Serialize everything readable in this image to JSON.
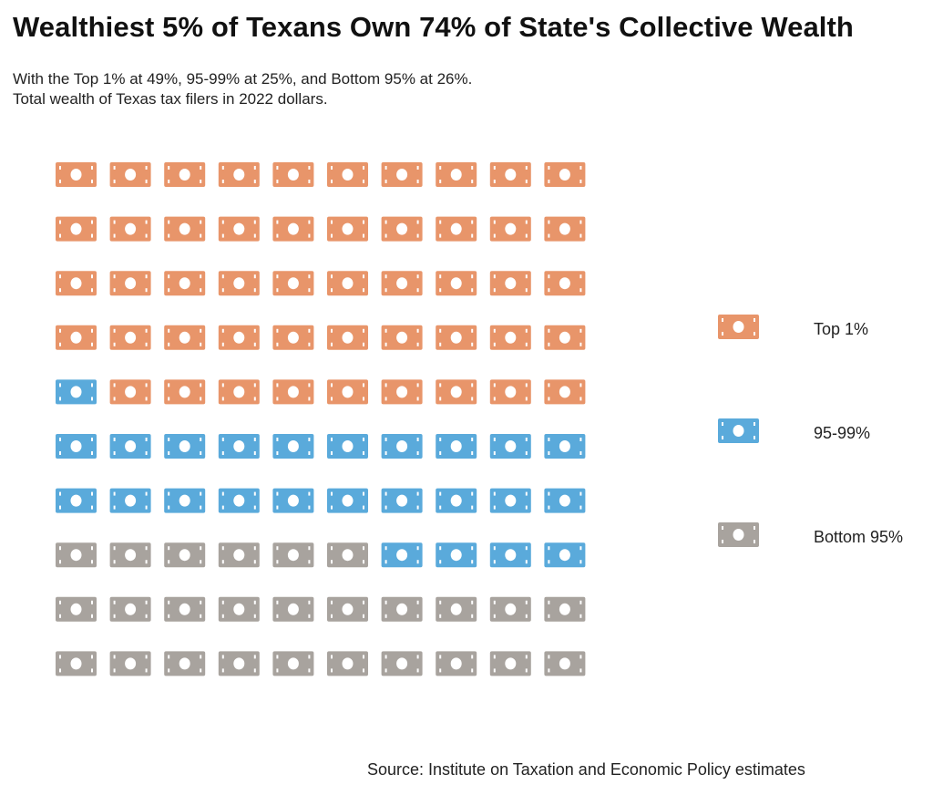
{
  "title": "Wealthiest 5% of Texans Own 74% of State's Collective Wealth",
  "subtitle": {
    "line1": "With the Top 1% at 49%, 95-99% at 25%, and Bottom 95% at 26%.",
    "line2": "Total wealth of Texas tax filers in 2022 dollars."
  },
  "source": "Source: Institute on Taxation and Economic Policy estimates",
  "chart_data": {
    "type": "waffle",
    "grid": {
      "rows": 10,
      "cols": 10
    },
    "categories": [
      "Top 1%",
      "95-99%",
      "Bottom 95%"
    ],
    "values": [
      49,
      25,
      26
    ],
    "colors": [
      "#E8956A",
      "#5AAADB",
      "#A8A39E"
    ],
    "icon": "dollar-bill-icon",
    "legend_placement": "right"
  }
}
